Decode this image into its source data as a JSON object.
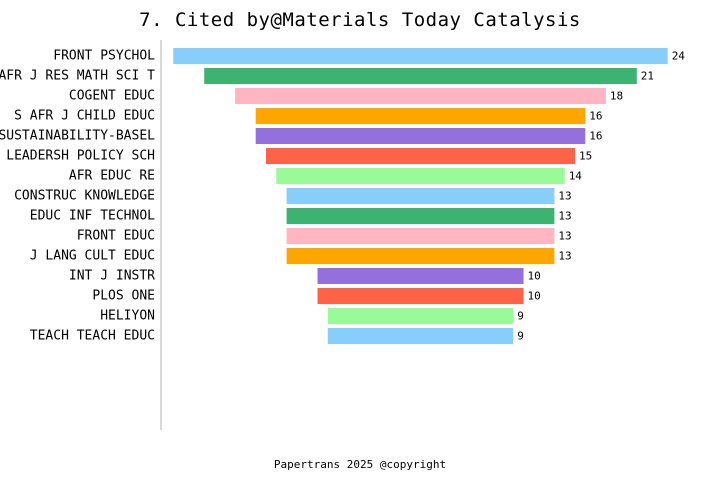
{
  "title": "7. Cited by@Materials Today Catalysis",
  "footer": "Papertrans 2025 @copyright",
  "chart_data": {
    "type": "bar",
    "orientation": "horizontal",
    "style": "centered funnel",
    "categories": [
      "FRONT PSYCHOL",
      "AFR J RES MATH SCI T",
      "COGENT EDUC",
      "S AFR J CHILD EDUC",
      "SUSTAINABILITY-BASEL",
      "LEADERSH POLICY SCH",
      "AFR EDUC RE",
      "CONSTRUC KNOWLEDGE",
      "EDUC INF TECHNOL",
      "FRONT EDUC",
      "J LANG CULT EDUC",
      "INT J INSTR",
      "PLOS ONE",
      "HELIYON",
      "TEACH TEACH EDUC"
    ],
    "values": [
      24,
      21,
      18,
      16,
      16,
      15,
      14,
      13,
      13,
      13,
      13,
      10,
      10,
      9,
      9
    ],
    "colors": [
      "#87CEFA",
      "#3CB371",
      "#FFB6C1",
      "#FFA500",
      "#9370DB",
      "#FF6347",
      "#98FB98",
      "#87CEFA",
      "#3CB371",
      "#FFB6C1",
      "#FFA500",
      "#9370DB",
      "#FF6347",
      "#98FB98",
      "#87CEFA"
    ],
    "xlim": [
      0,
      24
    ],
    "grid": false,
    "legend": "none"
  }
}
